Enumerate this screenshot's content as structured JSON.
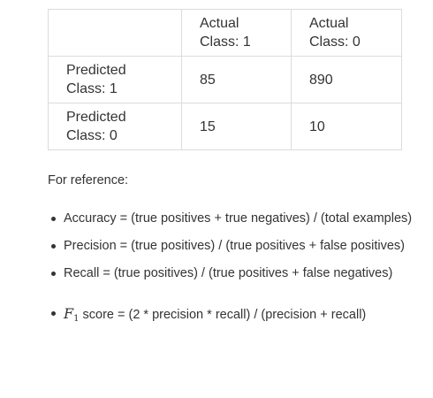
{
  "confusion_matrix": {
    "header": [
      "",
      "Actual\nClass: 1",
      "Actual\nClass: 0"
    ],
    "header_lines": [
      [],
      [
        "Actual",
        "Class: 1"
      ],
      [
        "Actual",
        "Class: 0"
      ]
    ],
    "rows": [
      {
        "label_lines": [
          "Predicted",
          "Class: 1"
        ],
        "values": [
          "85",
          "890"
        ]
      },
      {
        "label_lines": [
          "Predicted",
          "Class: 0"
        ],
        "values": [
          "15",
          "10"
        ]
      }
    ]
  },
  "reference_label": "For reference:",
  "definitions": [
    {
      "text": "Accuracy = (true positives + true negatives) / (total examples)"
    },
    {
      "text": "Precision = (true positives) / (true positives + false positives)"
    },
    {
      "text": "Recall = (true positives) / (true positives + false negatives)"
    }
  ],
  "f1": {
    "symbol": "F",
    "subscript": "1",
    "text": " score = (2 * precision * recall) / (precision + recall)"
  }
}
